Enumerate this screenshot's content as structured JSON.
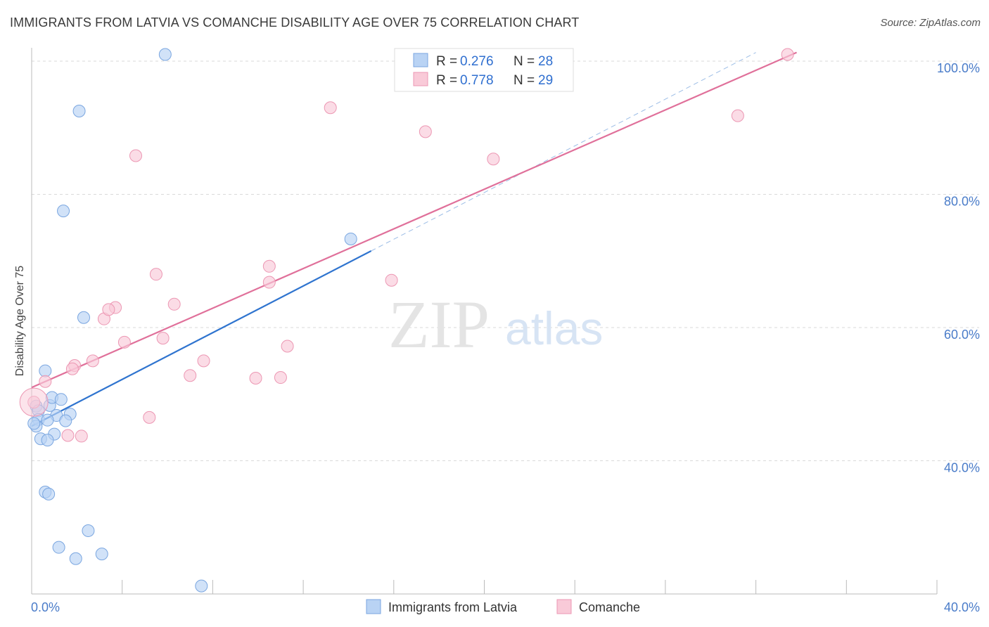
{
  "title": "IMMIGRANTS FROM LATVIA VS COMANCHE DISABILITY AGE OVER 75 CORRELATION CHART",
  "source": "Source: ZipAtlas.com",
  "watermark": {
    "zip": "ZIP",
    "atlas": "atlas"
  },
  "colors": {
    "blue_fill": "#b9d3f4",
    "blue_stroke": "#7aa6e0",
    "blue_line": "#2f74cf",
    "pink_fill": "#f9cad8",
    "pink_stroke": "#ec97b3",
    "pink_line": "#e0709a",
    "grid": "#d9d9d9",
    "axis": "#bbbbbb"
  },
  "legend": {
    "rows": [
      {
        "r_label": "R = ",
        "r_value": "0.276",
        "n_label": "N = ",
        "n_value": "28"
      },
      {
        "r_label": "R = ",
        "r_value": "0.778",
        "n_label": "N = ",
        "n_value": "29"
      }
    ]
  },
  "chart_data": {
    "type": "scatter",
    "title": "IMMIGRANTS FROM LATVIA VS COMANCHE DISABILITY AGE OVER 75 CORRELATION CHART",
    "xlabel": "",
    "ylabel": "Disability Age Over 75",
    "xlim": [
      0,
      40
    ],
    "ylim": [
      20,
      102
    ],
    "y_ticks": [
      {
        "value": 100,
        "label": "100.0%"
      },
      {
        "value": 80,
        "label": "80.0%"
      },
      {
        "value": 60,
        "label": "60.0%"
      },
      {
        "value": 40,
        "label": "40.0%"
      }
    ],
    "x_tick_labels": [
      {
        "value": 0,
        "label": "0.0%"
      },
      {
        "value": 40,
        "label": "40.0%"
      }
    ],
    "x_minor_ticks": [
      0,
      4,
      8,
      12,
      16,
      20,
      24,
      28,
      32,
      36,
      40
    ],
    "series": [
      {
        "name": "Immigrants from Latvia",
        "color": "blue",
        "points": [
          [
            5.9,
            101.0
          ],
          [
            2.1,
            92.5
          ],
          [
            1.4,
            77.5
          ],
          [
            14.1,
            73.3
          ],
          [
            2.3,
            61.5
          ],
          [
            0.6,
            53.5
          ],
          [
            0.2,
            48.2
          ],
          [
            0.3,
            47.5
          ],
          [
            0.8,
            48.3
          ],
          [
            0.9,
            49.5
          ],
          [
            1.3,
            49.2
          ],
          [
            1.1,
            46.8
          ],
          [
            1.7,
            47.0
          ],
          [
            0.3,
            46.2
          ],
          [
            0.7,
            46.1
          ],
          [
            1.5,
            46.0
          ],
          [
            0.2,
            45.2
          ],
          [
            1.0,
            44.0
          ],
          [
            0.4,
            43.3
          ],
          [
            0.7,
            43.1
          ],
          [
            0.6,
            35.3
          ],
          [
            0.75,
            35.0
          ],
          [
            2.5,
            29.5
          ],
          [
            1.2,
            27.0
          ],
          [
            1.95,
            25.3
          ],
          [
            3.1,
            26.0
          ],
          [
            7.5,
            21.2
          ],
          [
            0.1,
            45.6
          ]
        ],
        "trend": {
          "x": [
            0,
            15
          ],
          "y": [
            45.2,
            71.5
          ]
        },
        "trend_extension": {
          "x": [
            15,
            32
          ],
          "y": [
            71.5,
            101.3
          ]
        }
      },
      {
        "name": "Comanche",
        "color": "pink",
        "points": [
          [
            33.4,
            101.0
          ],
          [
            13.2,
            93.0
          ],
          [
            31.2,
            91.8
          ],
          [
            17.4,
            89.4
          ],
          [
            4.6,
            85.8
          ],
          [
            20.4,
            85.3
          ],
          [
            5.5,
            68.0
          ],
          [
            10.5,
            66.8
          ],
          [
            10.5,
            69.2
          ],
          [
            15.9,
            67.1
          ],
          [
            6.3,
            63.5
          ],
          [
            3.7,
            63.0
          ],
          [
            3.2,
            61.3
          ],
          [
            3.4,
            62.7
          ],
          [
            4.1,
            57.8
          ],
          [
            5.8,
            58.4
          ],
          [
            11.3,
            57.2
          ],
          [
            1.9,
            54.3
          ],
          [
            2.7,
            55.0
          ],
          [
            7.6,
            55.0
          ],
          [
            7.0,
            52.8
          ],
          [
            9.9,
            52.4
          ],
          [
            11.0,
            52.5
          ],
          [
            1.8,
            53.8
          ],
          [
            0.6,
            51.9
          ],
          [
            0.1,
            48.8
          ],
          [
            5.2,
            46.5
          ],
          [
            1.6,
            43.8
          ],
          [
            2.2,
            43.7
          ]
        ],
        "trend": {
          "x": [
            0,
            33.8
          ],
          "y": [
            51.0,
            101.3
          ]
        }
      }
    ]
  },
  "bottom_legend": {
    "items": [
      {
        "label": "Immigrants from Latvia",
        "color": "blue"
      },
      {
        "label": "Comanche",
        "color": "pink"
      }
    ]
  }
}
